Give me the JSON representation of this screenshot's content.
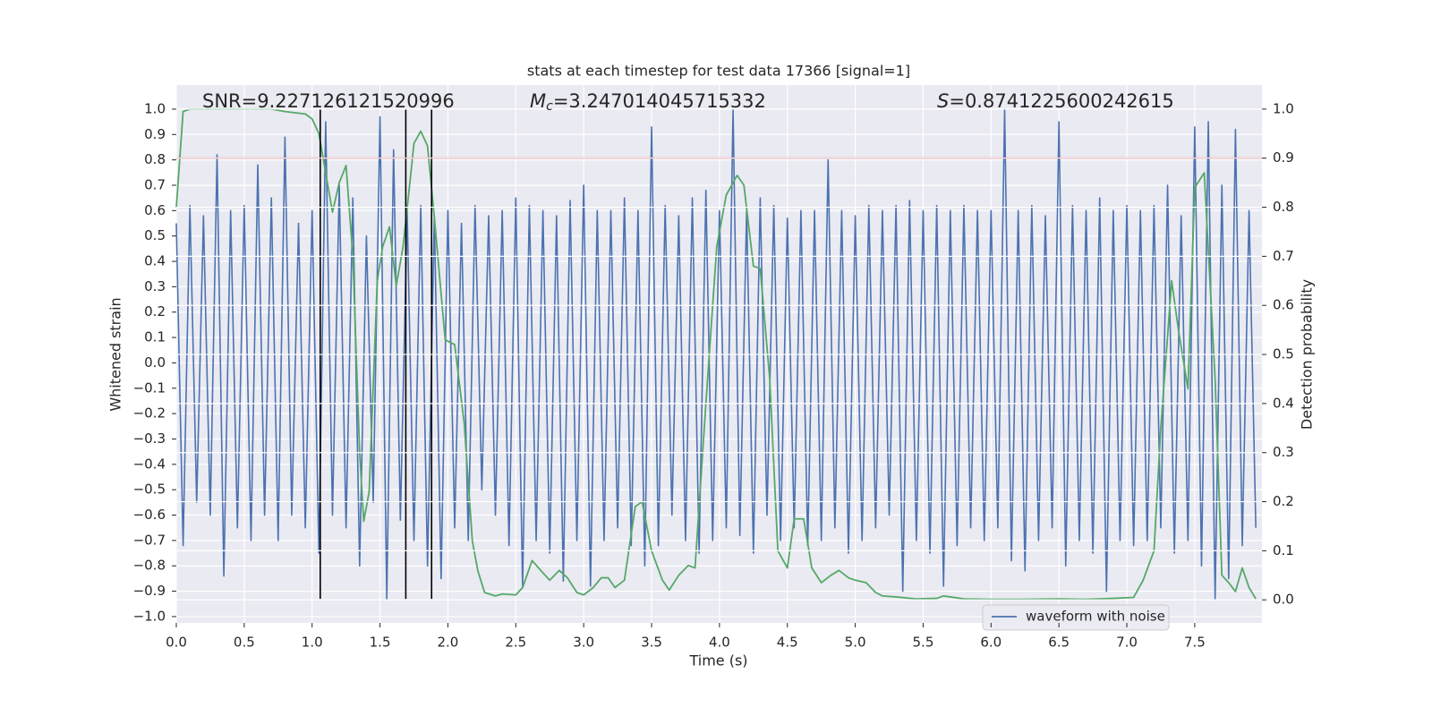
{
  "chart_data": {
    "type": "line",
    "title": "stats at each timestep for test data 17366 [signal=1]",
    "x_label": "Time (s)",
    "y_label": "Whitened strain",
    "y2_label": "Detection probability",
    "annotations": [
      {
        "text": "SNR=9.227126121520996"
      },
      {
        "symbol": "M",
        "subscript": "c",
        "text": "=3.247014045715332"
      },
      {
        "symbol": "S",
        "text": "=0.8741225600242615"
      }
    ],
    "xlim": [
      0,
      7.995
    ],
    "ylim": [
      -1.025,
      1.095
    ],
    "y2lim": [
      -0.047,
      1.049
    ],
    "xticks": [
      {
        "value": 0,
        "label": "0.0"
      },
      0.5,
      {
        "value": 1,
        "label": "1.0"
      },
      1.5,
      {
        "value": 2,
        "label": "2.0"
      },
      2.5,
      {
        "value": 3,
        "label": "3.0"
      },
      3.5,
      {
        "value": 4,
        "label": "4.0"
      },
      4.5,
      {
        "value": 5,
        "label": "5.0"
      },
      5.5,
      {
        "value": 6,
        "label": "6.0"
      },
      6.5,
      {
        "value": 7,
        "label": "7.0"
      },
      7.5
    ],
    "yticks": [
      {
        "value": 1,
        "label": "1.0"
      },
      0.9,
      0.8,
      0.7,
      0.6,
      0.5,
      0.4,
      0.3,
      0.2,
      0.1,
      {
        "value": 0,
        "label": "0.0"
      },
      {
        "value": -0.1,
        "label": "−0.1"
      },
      {
        "value": -0.2,
        "label": "−0.2"
      },
      {
        "value": -0.3,
        "label": "−0.3"
      },
      {
        "value": -0.4,
        "label": "−0.4"
      },
      {
        "value": -0.5,
        "label": "−0.5"
      },
      {
        "value": -0.6,
        "label": "−0.6"
      },
      {
        "value": -0.7,
        "label": "−0.7"
      },
      {
        "value": -0.8,
        "label": "−0.8"
      },
      {
        "value": -0.9,
        "label": "−0.9"
      },
      {
        "value": -1,
        "label": "−1.0"
      }
    ],
    "y2ticks": [
      {
        "value": 1,
        "label": "1.0"
      },
      0.9,
      0.8,
      0.7,
      0.6,
      0.5,
      0.4,
      0.3,
      0.2,
      0.1,
      {
        "value": 0,
        "label": "0.0"
      }
    ],
    "grid": true,
    "legend": "lower right",
    "hline": {
      "y2": 0.9,
      "color": "#c44e52"
    },
    "vlines": {
      "x": [
        1.06,
        1.69,
        1.88
      ],
      "from": -0.93,
      "to": 1.0,
      "color": "#000000"
    },
    "series": [
      {
        "name": "waveform with noise",
        "color": "#4c72b0",
        "axis": "y",
        "x_start": 0,
        "x_step": 0.05,
        "values": [
          0.55,
          -0.72,
          0.62,
          -0.55,
          0.58,
          -0.6,
          0.82,
          -0.84,
          0.6,
          -0.65,
          0.62,
          -0.7,
          0.78,
          -0.6,
          0.65,
          -0.7,
          0.89,
          -0.6,
          0.55,
          -0.65,
          0.6,
          -0.75,
          0.95,
          -0.6,
          0.7,
          -0.65,
          0.65,
          -0.8,
          0.5,
          -0.55,
          0.97,
          -0.93,
          0.84,
          -0.62,
          0.6,
          -0.7,
          0.62,
          -0.8,
          0.58,
          -0.85,
          0.6,
          -0.65,
          0.55,
          -0.7,
          0.62,
          -0.5,
          0.58,
          -0.6,
          0.6,
          -0.72,
          0.65,
          -0.88,
          0.62,
          -0.7,
          0.6,
          -0.75,
          0.58,
          -0.86,
          0.64,
          -0.7,
          0.7,
          -0.88,
          0.6,
          -0.7,
          0.6,
          -0.65,
          0.65,
          -0.72,
          0.6,
          -0.8,
          0.93,
          -0.72,
          0.62,
          -0.6,
          0.58,
          -0.7,
          0.65,
          -0.75,
          0.68,
          -0.7,
          0.6,
          -0.65,
          1.0,
          -0.68,
          0.6,
          -0.75,
          0.65,
          -0.6,
          0.62,
          -0.7,
          0.57,
          -0.65,
          0.6,
          -0.72,
          0.6,
          -0.7,
          0.8,
          -0.65,
          0.6,
          -0.75,
          0.58,
          -0.7,
          0.62,
          -0.65,
          0.6,
          -0.6,
          0.62,
          -0.9,
          0.64,
          -0.7,
          0.6,
          -0.75,
          0.62,
          -0.88,
          0.6,
          -0.72,
          0.62,
          -0.65,
          0.6,
          -0.7,
          0.6,
          -0.65,
          1.0,
          -0.78,
          0.6,
          -0.82,
          0.62,
          -0.7,
          0.58,
          -0.65,
          0.95,
          -0.8,
          0.62,
          -0.7,
          0.6,
          -0.75,
          0.65,
          -0.9,
          0.6,
          -0.7,
          0.62,
          -0.72,
          0.6,
          -0.7,
          0.62,
          -0.65,
          0.7,
          -0.75,
          0.58,
          -0.7,
          0.93,
          -0.8,
          0.95,
          -0.93,
          0.7,
          -0.85,
          0.92,
          -0.72,
          0.6,
          -0.65
        ]
      },
      {
        "color": "#55a868",
        "axis": "y2",
        "x": [
          0,
          0.05,
          0.1,
          0.2,
          0.5,
          0.7,
          0.8,
          0.95,
          1.0,
          1.05,
          1.1,
          1.15,
          1.2,
          1.25,
          1.3,
          1.35,
          1.38,
          1.42,
          1.48,
          1.52,
          1.57,
          1.62,
          1.67,
          1.72,
          1.75,
          1.8,
          1.85,
          1.9,
          1.98,
          2.05,
          2.12,
          2.18,
          2.22,
          2.27,
          2.35,
          2.4,
          2.5,
          2.55,
          2.62,
          2.7,
          2.75,
          2.82,
          2.88,
          2.95,
          3.0,
          3.07,
          3.13,
          3.18,
          3.23,
          3.3,
          3.38,
          3.43,
          3.5,
          3.58,
          3.63,
          3.7,
          3.77,
          3.82,
          3.9,
          3.98,
          4.05,
          4.13,
          4.18,
          4.25,
          4.3,
          4.37,
          4.43,
          4.5,
          4.55,
          4.62,
          4.68,
          4.75,
          4.82,
          4.88,
          4.95,
          5.0,
          5.08,
          5.15,
          5.2,
          5.3,
          5.45,
          5.6,
          5.65,
          5.7,
          5.8,
          6.0,
          6.2,
          6.5,
          6.7,
          6.9,
          7.05,
          7.12,
          7.2,
          7.25,
          7.33,
          7.38,
          7.45,
          7.5,
          7.57,
          7.65,
          7.7,
          7.75,
          7.8,
          7.85,
          7.9,
          7.95
        ],
        "values": [
          0.8,
          0.995,
          1.0,
          1.0,
          1.0,
          1.0,
          0.995,
          0.99,
          0.98,
          0.95,
          0.87,
          0.79,
          0.85,
          0.885,
          0.7,
          0.3,
          0.16,
          0.22,
          0.65,
          0.72,
          0.76,
          0.64,
          0.72,
          0.85,
          0.93,
          0.955,
          0.925,
          0.78,
          0.53,
          0.52,
          0.36,
          0.12,
          0.06,
          0.015,
          0.008,
          0.012,
          0.01,
          0.025,
          0.08,
          0.055,
          0.04,
          0.06,
          0.045,
          0.015,
          0.01,
          0.025,
          0.045,
          0.045,
          0.025,
          0.04,
          0.19,
          0.2,
          0.1,
          0.04,
          0.02,
          0.05,
          0.07,
          0.065,
          0.4,
          0.72,
          0.825,
          0.865,
          0.845,
          0.68,
          0.675,
          0.45,
          0.1,
          0.065,
          0.165,
          0.165,
          0.065,
          0.035,
          0.05,
          0.06,
          0.045,
          0.04,
          0.035,
          0.015,
          0.008,
          0.006,
          0.002,
          0.003,
          0.008,
          0.006,
          0.002,
          0.001,
          0.001,
          0.002,
          0.001,
          0.003,
          0.005,
          0.04,
          0.1,
          0.35,
          0.65,
          0.55,
          0.43,
          0.84,
          0.87,
          0.45,
          0.05,
          0.035,
          0.017,
          0.065,
          0.025,
          0.002
        ]
      }
    ]
  }
}
